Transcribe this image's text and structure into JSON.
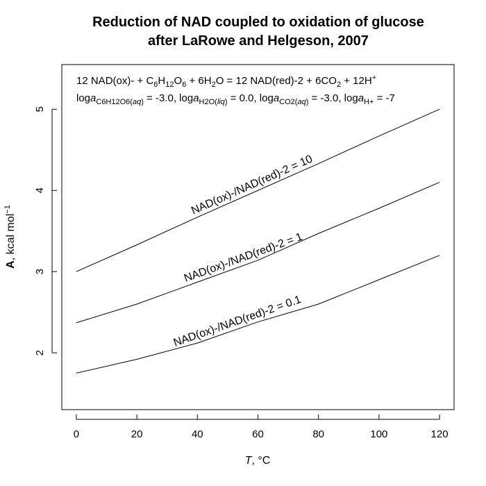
{
  "chart_data": {
    "type": "line",
    "title": [
      "Reduction of NAD coupled to oxidation of glucose",
      "after LaRowe and Helgeson, 2007"
    ],
    "xlabel": {
      "var": "T",
      "unit": ", °C"
    },
    "ylabel": {
      "var": "A",
      "unit": ", kcal mol",
      "sup": "−1"
    },
    "xlim": [
      -4.8,
      124.8
    ],
    "ylim": [
      1.3,
      5.55
    ],
    "xticks": [
      0,
      20,
      40,
      60,
      80,
      100,
      120
    ],
    "yticks": [
      2,
      3,
      4,
      5
    ],
    "grid": false,
    "x": [
      0,
      20,
      40,
      60,
      80,
      100,
      120
    ],
    "series": [
      {
        "name": "NAD(ox)-/NAD(red)-2 = 10",
        "values": [
          3.0,
          3.33,
          3.67,
          4.0,
          4.33,
          4.67,
          5.0
        ],
        "label_at": 59
      },
      {
        "name": "NAD(ox)-/NAD(red)-2 = 1",
        "values": [
          2.37,
          2.6,
          2.87,
          3.14,
          3.47,
          3.78,
          4.1
        ],
        "label_at": 56
      },
      {
        "name": "NAD(ox)-/NAD(red)-2 = 0.1",
        "values": [
          1.75,
          1.92,
          2.12,
          2.38,
          2.6,
          2.9,
          3.2
        ],
        "label_at": 54
      }
    ],
    "annotation": {
      "reaction": [
        {
          "t": "12 NAD(ox)-"
        },
        {
          "t": " + C"
        },
        {
          "t": "6",
          "sub": true
        },
        {
          "t": "H"
        },
        {
          "t": "12",
          "sub": true
        },
        {
          "t": "O"
        },
        {
          "t": "6",
          "sub": true
        },
        {
          "t": " + 6H"
        },
        {
          "t": "2",
          "sub": true
        },
        {
          "t": "O"
        },
        {
          "t": " = 12 NAD(red)-2"
        },
        {
          "t": " + 6CO"
        },
        {
          "t": "2",
          "sub": true
        },
        {
          "t": " + 12H"
        },
        {
          "t": "+",
          "sup": true
        }
      ],
      "activities": [
        {
          "t": "log"
        },
        {
          "t": "a",
          "ital": true
        },
        {
          "t": "C6H12O6(",
          "sub": true
        },
        {
          "t": "aq",
          "sub": true,
          "ital": true
        },
        {
          "t": ")",
          "sub": true
        },
        {
          "t": " = -3.0, "
        },
        {
          "t": "log"
        },
        {
          "t": "a",
          "ital": true
        },
        {
          "t": "H2O(",
          "sub": true
        },
        {
          "t": "liq",
          "sub": true,
          "ital": true
        },
        {
          "t": ")",
          "sub": true
        },
        {
          "t": " = 0.0, "
        },
        {
          "t": "log"
        },
        {
          "t": "a",
          "ital": true
        },
        {
          "t": "CO2(",
          "sub": true
        },
        {
          "t": "aq",
          "sub": true,
          "ital": true
        },
        {
          "t": ")",
          "sub": true
        },
        {
          "t": " = -3.0, "
        },
        {
          "t": "log"
        },
        {
          "t": "a",
          "ital": true
        },
        {
          "t": "H+",
          "sub": true
        },
        {
          "t": " = -7"
        }
      ]
    }
  }
}
